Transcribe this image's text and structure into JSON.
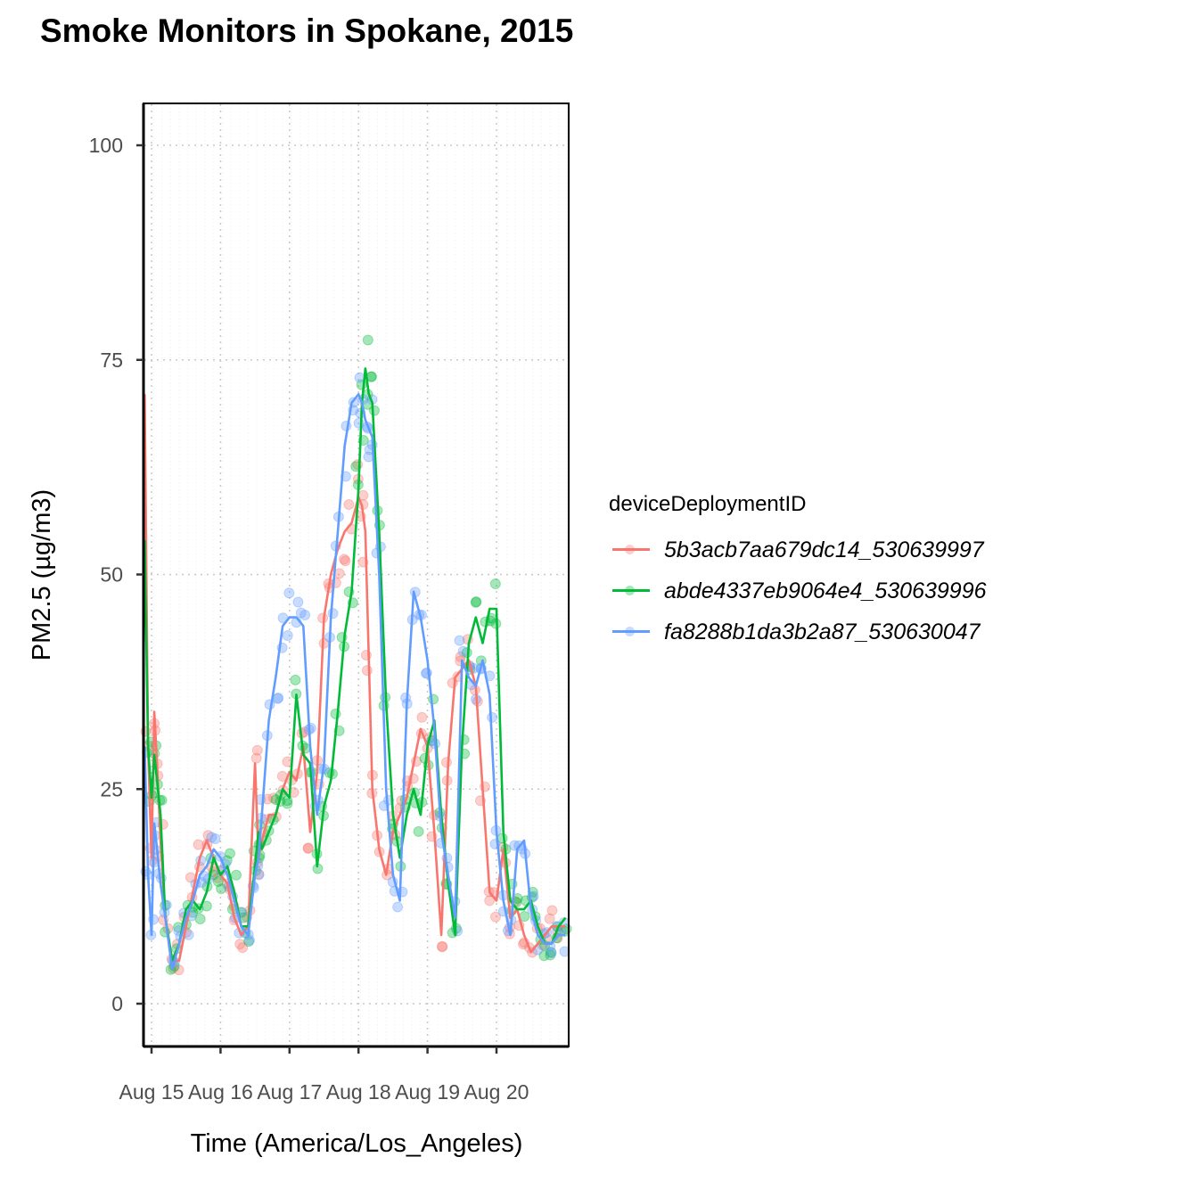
{
  "page": {
    "title": "Smoke Monitors in Spokane, 2015"
  },
  "legend": {
    "title": "deviceDeploymentID",
    "items": [
      {
        "label": "5b3acb7aa679dc14_530639997",
        "color": "#F8766D"
      },
      {
        "label": "abde4337eb9064e4_530639996",
        "color": "#00BA38"
      },
      {
        "label": "fa8288b1da3b2a87_530630047",
        "color": "#619CFF"
      }
    ]
  },
  "axes": {
    "xlabel": "Time (America/Los_Angeles)",
    "ylabel": "PM2.5 (µg/m3)",
    "xticks": [
      "Aug 15",
      "Aug 16",
      "Aug 17",
      "Aug 18",
      "Aug 19",
      "Aug 20"
    ],
    "yticks": [
      "0",
      "25",
      "50",
      "75",
      "100"
    ]
  },
  "chart_data": {
    "type": "line",
    "title": "Smoke Monitors in Spokane, 2015",
    "xlabel": "Time (America/Los_Angeles)",
    "ylabel": "PM2.5 (µg/m3)",
    "x_unit": "days since Aug 15 00:00",
    "xlim": [
      -0.12,
      6.05
    ],
    "ylim": [
      -5,
      105
    ],
    "x_tick_labels": [
      "Aug 15",
      "Aug 16",
      "Aug 17",
      "Aug 18",
      "Aug 19",
      "Aug 20"
    ],
    "y_ticks": [
      0,
      25,
      50,
      75,
      100
    ],
    "grid": true,
    "legend_position": "right",
    "legend_title": "deviceDeploymentID",
    "x": [
      -0.1,
      -0.05,
      0.0,
      0.04,
      0.08,
      0.13,
      0.2,
      0.3,
      0.4,
      0.5,
      0.6,
      0.7,
      0.8,
      0.9,
      1.0,
      1.1,
      1.2,
      1.3,
      1.4,
      1.5,
      1.55,
      1.6,
      1.7,
      1.8,
      1.9,
      2.0,
      2.1,
      2.2,
      2.3,
      2.4,
      2.5,
      2.6,
      2.7,
      2.8,
      2.9,
      3.0,
      3.05,
      3.1,
      3.15,
      3.2,
      3.3,
      3.4,
      3.5,
      3.6,
      3.7,
      3.8,
      3.9,
      4.0,
      4.1,
      4.2,
      4.3,
      4.4,
      4.5,
      4.6,
      4.7,
      4.8,
      4.9,
      5.0,
      5.1,
      5.2,
      5.3,
      5.4,
      5.5,
      5.6,
      5.7,
      5.8,
      5.9,
      6.0
    ],
    "series": [
      {
        "name": "5b3acb7aa679dc14_530639997",
        "color": "#F8766D",
        "values": [
          71,
          30,
          17,
          34,
          28,
          19,
          10,
          5,
          5,
          9,
          13,
          17,
          19,
          17,
          15,
          14,
          10,
          8,
          9,
          28,
          17,
          19,
          22,
          22,
          25,
          27,
          26,
          30,
          20,
          27,
          45,
          50,
          53,
          55,
          56,
          59,
          58,
          55,
          40,
          25,
          18,
          15,
          20,
          22,
          24,
          28,
          32,
          30,
          20,
          8,
          28,
          38,
          39,
          40,
          37,
          25,
          13,
          12,
          18,
          10,
          11,
          8,
          6,
          7,
          8,
          9,
          9,
          9
        ]
      },
      {
        "name": "abde4337eb9064e4_530639996",
        "color": "#00BA38",
        "values": [
          54,
          30,
          24,
          29,
          26,
          22,
          10,
          5,
          7,
          11,
          12,
          11,
          13,
          17,
          15,
          16,
          13,
          9,
          9,
          16,
          20,
          18,
          20,
          22,
          25,
          24,
          36,
          29,
          28,
          16,
          23,
          26,
          34,
          43,
          48,
          60,
          70,
          74,
          71,
          70,
          55,
          35,
          22,
          17,
          22,
          25,
          22,
          30,
          33,
          22,
          14,
          8,
          30,
          42,
          45,
          42,
          46,
          46,
          20,
          12,
          11,
          11,
          12,
          9,
          7,
          7,
          9,
          10
        ]
      },
      {
        "name": "fa8288b1da3b2a87_530630047",
        "color": "#619CFF",
        "values": [
          30,
          15,
          8,
          21,
          18,
          14,
          10,
          4,
          7,
          10,
          12,
          15,
          16,
          18,
          17,
          15,
          12,
          9,
          8,
          15,
          17,
          22,
          33,
          38,
          44,
          45,
          45,
          44,
          30,
          22,
          28,
          45,
          55,
          65,
          70,
          71,
          70,
          68,
          67,
          66,
          50,
          25,
          15,
          12,
          35,
          48,
          45,
          40,
          32,
          20,
          15,
          10,
          40,
          38,
          37,
          40,
          36,
          20,
          12,
          8,
          18,
          19,
          11,
          8,
          7,
          7,
          8,
          8
        ]
      }
    ],
    "points_note": "Each series also has semi-transparent scatter points (alpha ~0.35) at hourly readings around the lines"
  }
}
